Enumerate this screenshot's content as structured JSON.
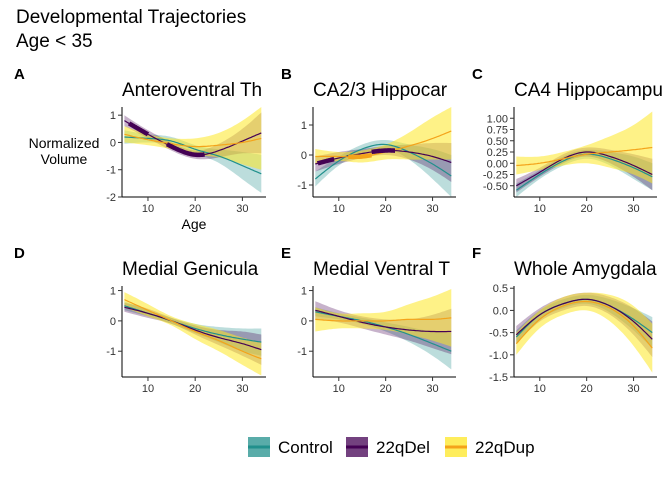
{
  "figure": {
    "title_line1": "Developmental Trajectories",
    "title_line2": "Age < 35"
  },
  "colors": {
    "Control": "#21908c",
    "22qDel": "#440154",
    "22qDup": "#fde725",
    "22qDup_line": "#f4a31a"
  },
  "legend": {
    "items": [
      {
        "label": "Control",
        "color": "#21908c"
      },
      {
        "label": "22qDel",
        "color": "#440154"
      },
      {
        "label": "22qDup",
        "color": "#fde725"
      }
    ]
  },
  "chart_data": [
    {
      "letter": "A",
      "title": "Anteroventral Th",
      "type": "line",
      "xlabel": "Age",
      "ylabel": "Normalized\nVolume",
      "xlim": [
        4.5,
        35
      ],
      "ylim": [
        -2,
        1.3
      ],
      "xticks": [
        10,
        20,
        30
      ],
      "yticks": [
        -2,
        -1,
        0,
        1
      ],
      "ytick_labels": [
        "-2",
        "-1",
        "0",
        "1"
      ],
      "x": [
        5,
        10,
        15,
        20,
        25,
        30,
        34
      ],
      "series": [
        {
          "name": "Control",
          "values": [
            0.2,
            0.15,
            0.05,
            -0.25,
            -0.5,
            -0.85,
            -1.15
          ],
          "lower": [
            -0.05,
            0.0,
            -0.1,
            -0.4,
            -0.75,
            -1.35,
            -1.85
          ],
          "upper": [
            0.45,
            0.3,
            0.2,
            -0.1,
            -0.25,
            -0.35,
            -0.45
          ]
        },
        {
          "name": "22qDel",
          "values": [
            0.8,
            0.3,
            -0.15,
            -0.45,
            -0.3,
            0.05,
            0.35
          ],
          "lower": [
            0.6,
            0.15,
            -0.3,
            -0.6,
            -0.55,
            -0.4,
            -0.4
          ],
          "upper": [
            1.0,
            0.45,
            0.0,
            -0.3,
            -0.05,
            0.5,
            1.1
          ]
        },
        {
          "name": "22qDup",
          "values": [
            0.3,
            0.1,
            -0.05,
            -0.15,
            -0.1,
            0.0,
            0.15
          ],
          "lower": [
            0.0,
            -0.1,
            -0.25,
            -0.45,
            -0.55,
            -0.8,
            -1.0
          ],
          "upper": [
            0.6,
            0.3,
            0.15,
            0.15,
            0.35,
            0.8,
            1.3
          ]
        }
      ],
      "highlights": [
        {
          "series": "22qDel",
          "range": [
            6,
            10
          ]
        },
        {
          "series": "22qDel",
          "range": [
            14,
            22
          ]
        }
      ]
    },
    {
      "letter": "B",
      "title": "CA2/3 Hippocar",
      "type": "line",
      "xlabel": "",
      "ylabel": "",
      "xlim": [
        4.5,
        35
      ],
      "ylim": [
        -1.4,
        1.6
      ],
      "xticks": [
        10,
        20,
        30
      ],
      "yticks": [
        -1,
        0,
        1
      ],
      "ytick_labels": [
        "-1",
        "0",
        "1"
      ],
      "x": [
        5,
        10,
        15,
        20,
        25,
        30,
        34
      ],
      "series": [
        {
          "name": "Control",
          "values": [
            -0.8,
            -0.2,
            0.2,
            0.35,
            0.1,
            -0.3,
            -0.7
          ],
          "lower": [
            -1.05,
            -0.35,
            0.05,
            0.2,
            -0.15,
            -0.8,
            -1.4
          ],
          "upper": [
            -0.55,
            -0.05,
            0.35,
            0.5,
            0.35,
            0.2,
            0.0
          ]
        },
        {
          "name": "22qDel",
          "values": [
            -0.3,
            -0.1,
            0.05,
            0.15,
            0.1,
            -0.05,
            -0.25
          ],
          "lower": [
            -0.55,
            -0.3,
            -0.1,
            0.0,
            -0.15,
            -0.5,
            -0.9
          ],
          "upper": [
            -0.05,
            0.1,
            0.2,
            0.3,
            0.35,
            0.4,
            0.4
          ]
        },
        {
          "name": "22qDup",
          "values": [
            -0.05,
            -0.05,
            -0.05,
            0.1,
            0.3,
            0.55,
            0.8
          ],
          "lower": [
            -0.3,
            -0.2,
            -0.25,
            -0.15,
            -0.15,
            -0.15,
            -0.15
          ],
          "upper": [
            0.2,
            0.1,
            0.15,
            0.35,
            0.75,
            1.25,
            1.6
          ]
        }
      ],
      "highlights": [
        {
          "series": "22qDel",
          "range": [
            5.5,
            9
          ]
        },
        {
          "series": "22qDel",
          "range": [
            17,
            22
          ]
        },
        {
          "series": "22qDup",
          "range": [
            12,
            17
          ]
        }
      ]
    },
    {
      "letter": "C",
      "title": "CA4 Hippocampu",
      "type": "line",
      "xlabel": "",
      "ylabel": "",
      "xlim": [
        4.5,
        35
      ],
      "ylim": [
        -0.75,
        1.25
      ],
      "xticks": [
        10,
        20,
        30
      ],
      "yticks": [
        -0.5,
        -0.25,
        0.0,
        0.25,
        0.5,
        0.75,
        1.0
      ],
      "ytick_labels": [
        "-0.50",
        "-0.25",
        "0.00",
        "0.25",
        "0.50",
        "0.75",
        "1.00"
      ],
      "x": [
        5,
        10,
        15,
        20,
        25,
        30,
        34
      ],
      "series": [
        {
          "name": "Control",
          "values": [
            -0.6,
            -0.25,
            0.05,
            0.2,
            0.1,
            -0.1,
            -0.3
          ],
          "lower": [
            -0.75,
            -0.35,
            -0.05,
            0.1,
            -0.05,
            -0.35,
            -0.6
          ],
          "upper": [
            -0.45,
            -0.15,
            0.15,
            0.3,
            0.25,
            0.15,
            0.0
          ]
        },
        {
          "name": "22qDel",
          "values": [
            -0.5,
            -0.2,
            0.1,
            0.25,
            0.15,
            -0.05,
            -0.25
          ],
          "lower": [
            -0.65,
            -0.3,
            0.0,
            0.15,
            0.0,
            -0.3,
            -0.6
          ],
          "upper": [
            -0.35,
            -0.1,
            0.2,
            0.35,
            0.3,
            0.2,
            0.1
          ]
        },
        {
          "name": "22qDup",
          "values": [
            -0.05,
            0.0,
            0.1,
            0.2,
            0.25,
            0.3,
            0.35
          ],
          "lower": [
            -0.25,
            -0.15,
            -0.05,
            0.0,
            -0.1,
            -0.25,
            -0.45
          ],
          "upper": [
            0.15,
            0.15,
            0.25,
            0.4,
            0.6,
            0.85,
            1.15
          ]
        }
      ],
      "highlights": []
    },
    {
      "letter": "D",
      "title": "Medial Genicula",
      "type": "line",
      "xlabel": "",
      "ylabel": "",
      "xlim": [
        4.5,
        35
      ],
      "ylim": [
        -1.85,
        1.15
      ],
      "xticks": [
        10,
        20,
        30
      ],
      "yticks": [
        -1,
        0,
        1
      ],
      "ytick_labels": [
        "-1",
        "0",
        "1"
      ],
      "x": [
        5,
        10,
        15,
        20,
        25,
        30,
        34
      ],
      "series": [
        {
          "name": "Control",
          "values": [
            0.5,
            0.25,
            0.0,
            -0.25,
            -0.45,
            -0.6,
            -0.7
          ],
          "lower": [
            0.35,
            0.15,
            -0.1,
            -0.4,
            -0.7,
            -1.0,
            -1.15
          ],
          "upper": [
            0.65,
            0.35,
            0.1,
            -0.1,
            -0.2,
            -0.25,
            -0.25
          ]
        },
        {
          "name": "22qDel",
          "values": [
            0.45,
            0.25,
            0.0,
            -0.3,
            -0.55,
            -0.75,
            -0.95
          ],
          "lower": [
            0.3,
            0.1,
            -0.1,
            -0.45,
            -0.8,
            -1.15,
            -1.45
          ],
          "upper": [
            0.6,
            0.4,
            0.1,
            -0.15,
            -0.3,
            -0.35,
            -0.45
          ]
        },
        {
          "name": "22qDup",
          "values": [
            0.7,
            0.35,
            0.0,
            -0.35,
            -0.65,
            -1.0,
            -1.25
          ],
          "lower": [
            0.45,
            0.15,
            -0.15,
            -0.6,
            -1.0,
            -1.45,
            -1.8
          ],
          "upper": [
            0.95,
            0.55,
            0.15,
            -0.1,
            -0.3,
            -0.55,
            -0.7
          ]
        }
      ],
      "highlights": []
    },
    {
      "letter": "E",
      "title": "Medial Ventral T",
      "type": "line",
      "xlabel": "",
      "ylabel": "",
      "xlim": [
        4.5,
        35
      ],
      "ylim": [
        -1.85,
        1.15
      ],
      "xticks": [
        10,
        20,
        30
      ],
      "yticks": [
        -1,
        0,
        1
      ],
      "ytick_labels": [
        "-1",
        "0",
        "1"
      ],
      "x": [
        5,
        10,
        15,
        20,
        25,
        30,
        34
      ],
      "series": [
        {
          "name": "Control",
          "values": [
            0.3,
            0.15,
            0.0,
            -0.2,
            -0.45,
            -0.75,
            -1.0
          ],
          "lower": [
            0.15,
            0.05,
            -0.1,
            -0.35,
            -0.7,
            -1.15,
            -1.6
          ],
          "upper": [
            0.45,
            0.25,
            0.1,
            -0.05,
            -0.2,
            -0.35,
            -0.4
          ]
        },
        {
          "name": "22qDel",
          "values": [
            0.35,
            0.15,
            -0.05,
            -0.2,
            -0.3,
            -0.35,
            -0.35
          ],
          "lower": [
            0.05,
            -0.05,
            -0.25,
            -0.45,
            -0.65,
            -0.9,
            -1.1
          ],
          "upper": [
            0.65,
            0.35,
            0.15,
            0.05,
            0.05,
            0.2,
            0.4
          ]
        },
        {
          "name": "22qDup",
          "values": [
            0.05,
            0.0,
            0.0,
            0.0,
            0.05,
            0.05,
            0.1
          ],
          "lower": [
            -0.35,
            -0.25,
            -0.25,
            -0.3,
            -0.45,
            -0.65,
            -0.85
          ],
          "upper": [
            0.45,
            0.25,
            0.25,
            0.3,
            0.55,
            0.8,
            1.05
          ]
        }
      ],
      "highlights": []
    },
    {
      "letter": "F",
      "title": "Whole Amygdala",
      "type": "line",
      "xlabel": "",
      "ylabel": "",
      "xlim": [
        4.5,
        35
      ],
      "ylim": [
        -1.5,
        0.55
      ],
      "xticks": [
        10,
        20,
        30
      ],
      "yticks": [
        -1.5,
        -1.0,
        -0.5,
        0.0,
        0.5
      ],
      "ytick_labels": [
        "-1.5",
        "-1.0",
        "-0.5",
        "0.0",
        "0.5"
      ],
      "x": [
        5,
        10,
        15,
        20,
        25,
        30,
        34
      ],
      "series": [
        {
          "name": "Control",
          "values": [
            -0.6,
            -0.1,
            0.15,
            0.25,
            0.1,
            -0.2,
            -0.5
          ],
          "lower": [
            -0.75,
            -0.2,
            0.05,
            0.15,
            -0.05,
            -0.45,
            -0.85
          ],
          "upper": [
            -0.45,
            0.0,
            0.25,
            0.35,
            0.25,
            0.05,
            -0.15
          ]
        },
        {
          "name": "22qDel",
          "values": [
            -0.55,
            -0.1,
            0.15,
            0.25,
            0.1,
            -0.25,
            -0.65
          ],
          "lower": [
            -0.75,
            -0.25,
            0.0,
            0.1,
            -0.1,
            -0.55,
            -1.05
          ],
          "upper": [
            -0.35,
            0.05,
            0.3,
            0.4,
            0.3,
            0.05,
            -0.25
          ]
        },
        {
          "name": "22qDup",
          "values": [
            -0.75,
            -0.2,
            0.1,
            0.2,
            0.05,
            -0.35,
            -0.85
          ],
          "lower": [
            -1.0,
            -0.4,
            -0.1,
            0.0,
            -0.25,
            -0.8,
            -1.4
          ],
          "upper": [
            -0.5,
            0.0,
            0.3,
            0.4,
            0.35,
            0.1,
            -0.3
          ]
        }
      ],
      "highlights": []
    }
  ]
}
